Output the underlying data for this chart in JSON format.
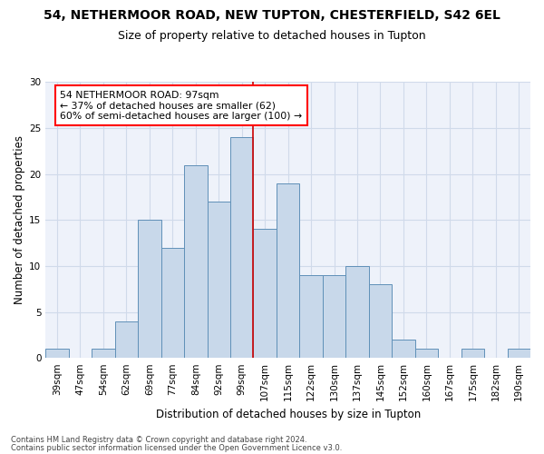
{
  "title1": "54, NETHERMOOR ROAD, NEW TUPTON, CHESTERFIELD, S42 6EL",
  "title2": "Size of property relative to detached houses in Tupton",
  "xlabel": "Distribution of detached houses by size in Tupton",
  "ylabel": "Number of detached properties",
  "categories": [
    "39sqm",
    "47sqm",
    "54sqm",
    "62sqm",
    "69sqm",
    "77sqm",
    "84sqm",
    "92sqm",
    "99sqm",
    "107sqm",
    "115sqm",
    "122sqm",
    "130sqm",
    "137sqm",
    "145sqm",
    "152sqm",
    "160sqm",
    "167sqm",
    "175sqm",
    "182sqm",
    "190sqm"
  ],
  "values": [
    1,
    0,
    1,
    4,
    15,
    12,
    21,
    17,
    24,
    14,
    19,
    9,
    9,
    10,
    8,
    2,
    1,
    0,
    1,
    0,
    1
  ],
  "bar_color": "#c8d8ea",
  "bar_edge_color": "#6090b8",
  "red_line_x": 8.5,
  "annotation_text": "54 NETHERMOOR ROAD: 97sqm\n← 37% of detached houses are smaller (62)\n60% of semi-detached houses are larger (100) →",
  "footnote1": "Contains HM Land Registry data © Crown copyright and database right 2024.",
  "footnote2": "Contains public sector information licensed under the Open Government Licence v3.0.",
  "ylim": [
    0,
    30
  ],
  "yticks": [
    0,
    5,
    10,
    15,
    20,
    25,
    30
  ],
  "grid_color": "#d0daea",
  "background_color": "#eef2fa",
  "title1_fontsize": 10,
  "title2_fontsize": 9,
  "xlabel_fontsize": 8.5,
  "ylabel_fontsize": 8.5,
  "tick_fontsize": 7.5,
  "footnote_fontsize": 6.0
}
